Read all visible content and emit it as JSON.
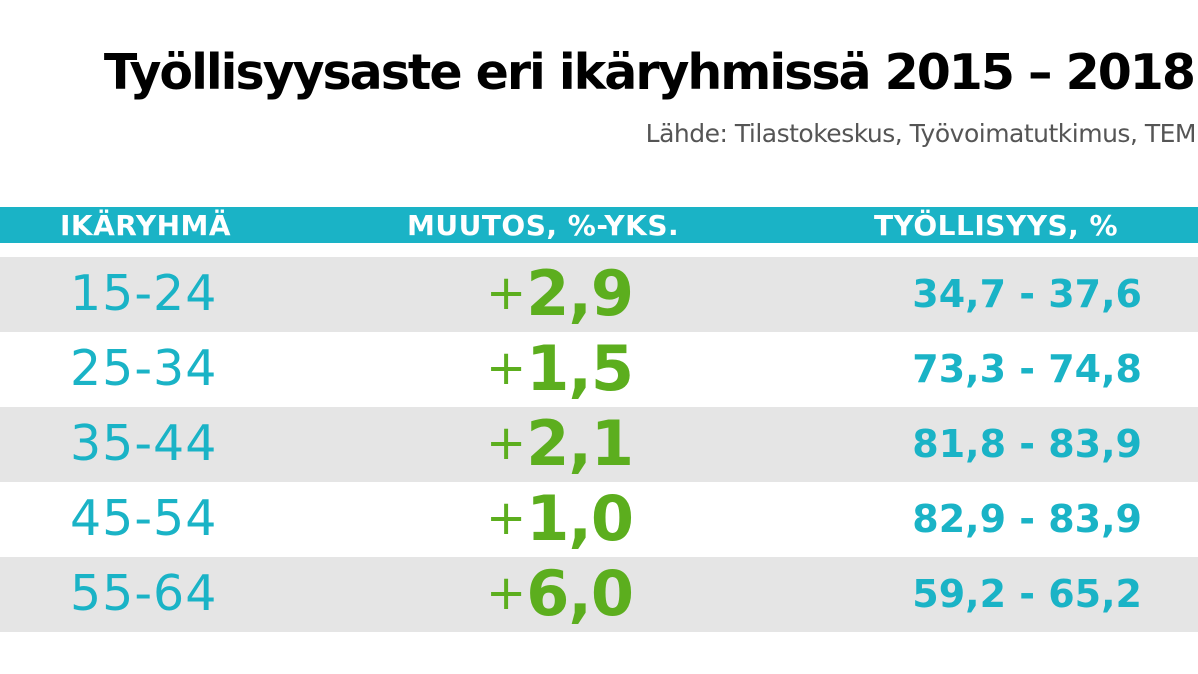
{
  "chart_data": {
    "type": "table",
    "title": "Työllisyysaste eri ikäryhmissä 2015 – 2018",
    "source": "Lähde: Tilastokeskus, Työvoimatutkimus, TEM",
    "columns": [
      "IKÄRYHMÄ",
      "MUUTOS, %-YKS.",
      "TYÖLLISYYS, %"
    ],
    "rows": [
      {
        "age": "15-24",
        "sign": "+",
        "change": "2,9",
        "range": "34,7 - 37,6"
      },
      {
        "age": "25-34",
        "sign": "+",
        "change": "1,5",
        "range": "73,3 - 74,8"
      },
      {
        "age": "35-44",
        "sign": "+",
        "change": "2,1",
        "range": "81,8 - 83,9"
      },
      {
        "age": "45-54",
        "sign": "+",
        "change": "1,0",
        "range": "82,9 - 83,9"
      },
      {
        "age": "55-64",
        "sign": "+",
        "change": "6,0",
        "range": "59,2 - 65,2"
      }
    ]
  },
  "colors": {
    "accent": "#1ab3c6",
    "positive": "#5cae1e",
    "row_shade": "#e5e5e5",
    "title": "#000000",
    "source": "#555555"
  }
}
